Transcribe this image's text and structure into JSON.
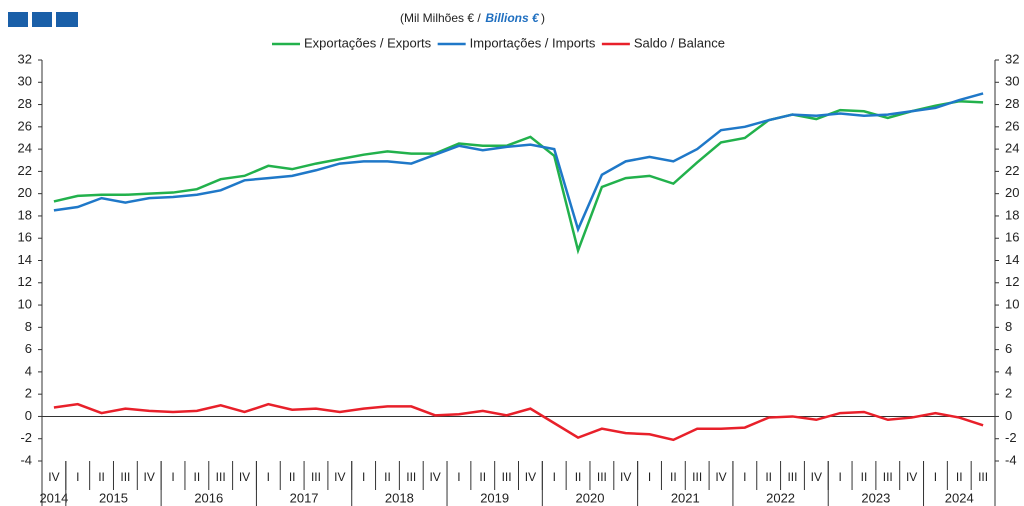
{
  "chart_data": {
    "type": "line",
    "title_pt": "(Mil Milhões  € /",
    "title_en": "Billions €",
    "title_close": ")",
    "categories": [
      "IV",
      "I",
      "II",
      "III",
      "IV",
      "I",
      "II",
      "III",
      "IV",
      "I",
      "II",
      "III",
      "IV",
      "I",
      "II",
      "III",
      "IV",
      "I",
      "II",
      "III",
      "IV",
      "I",
      "II",
      "III",
      "IV",
      "I",
      "II",
      "III",
      "IV",
      "I",
      "II",
      "III",
      "IV",
      "I",
      "II",
      "III",
      "IV",
      "I",
      "II",
      "III"
    ],
    "year_labels": [
      "2014",
      "2015",
      "2016",
      "2017",
      "2018",
      "2019",
      "2020",
      "2021",
      "2022",
      "2023",
      "2024"
    ],
    "series": [
      {
        "name": "Exportações / Exports",
        "color": "#22b14c",
        "values": [
          19.3,
          19.8,
          19.9,
          19.9,
          20.0,
          20.1,
          20.4,
          21.3,
          21.6,
          22.5,
          22.2,
          22.7,
          23.1,
          23.5,
          23.8,
          23.6,
          23.6,
          24.5,
          24.3,
          24.3,
          25.1,
          23.4,
          14.9,
          20.6,
          21.4,
          21.6,
          20.9,
          22.8,
          24.6,
          25.0,
          26.6,
          27.1,
          26.7,
          27.5,
          27.4,
          26.8,
          27.4,
          27.9,
          28.3,
          28.2
        ]
      },
      {
        "name": "Importações / Imports",
        "color": "#1f78c8",
        "values": [
          18.5,
          18.8,
          19.6,
          19.2,
          19.6,
          19.7,
          19.9,
          20.3,
          21.2,
          21.4,
          21.6,
          22.1,
          22.7,
          22.9,
          22.9,
          22.7,
          23.5,
          24.3,
          23.9,
          24.2,
          24.4,
          24.0,
          16.8,
          21.7,
          22.9,
          23.3,
          22.9,
          24.0,
          25.7,
          26.0,
          26.6,
          27.1,
          27.0,
          27.2,
          27.0,
          27.1,
          27.4,
          27.7,
          28.4,
          29.0
        ]
      },
      {
        "name": "Saldo / Balance",
        "color": "#e8202a",
        "values": [
          0.8,
          1.1,
          0.3,
          0.7,
          0.5,
          0.4,
          0.5,
          1.0,
          0.4,
          1.1,
          0.6,
          0.7,
          0.4,
          0.7,
          0.9,
          0.9,
          0.1,
          0.2,
          0.5,
          0.1,
          0.7,
          -0.6,
          -1.9,
          -1.1,
          -1.5,
          -1.6,
          -2.1,
          -1.1,
          -1.1,
          -1.0,
          -0.1,
          0.0,
          -0.3,
          0.3,
          0.4,
          -0.3,
          -0.1,
          0.3,
          -0.1,
          -0.8
        ]
      }
    ],
    "ylim": [
      -4,
      32
    ],
    "yticks": [
      -4,
      -2,
      0,
      2,
      4,
      6,
      8,
      10,
      12,
      14,
      16,
      18,
      20,
      22,
      24,
      26,
      28,
      30,
      32
    ]
  }
}
